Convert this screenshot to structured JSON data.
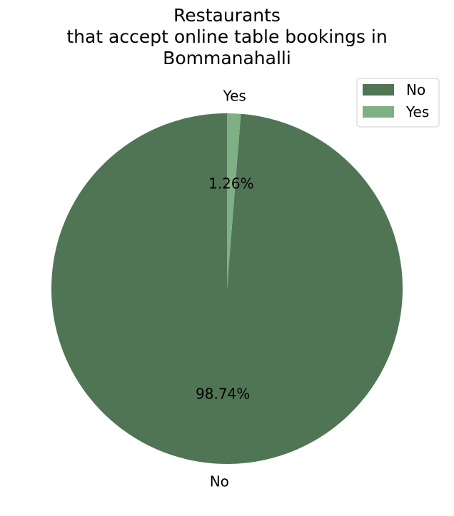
{
  "chart_data": {
    "type": "pie",
    "title_lines": [
      "Restaurants",
      "that accept online table bookings in",
      "Bommanahalli"
    ],
    "slices": [
      {
        "label": "No",
        "value": 98.74,
        "pct_label": "98.74%",
        "color": "#507555"
      },
      {
        "label": "Yes",
        "value": 1.26,
        "pct_label": "1.26%",
        "color": "#7faf84"
      }
    ],
    "legend": {
      "position": "top-right",
      "entries": [
        "No",
        "Yes"
      ]
    }
  }
}
